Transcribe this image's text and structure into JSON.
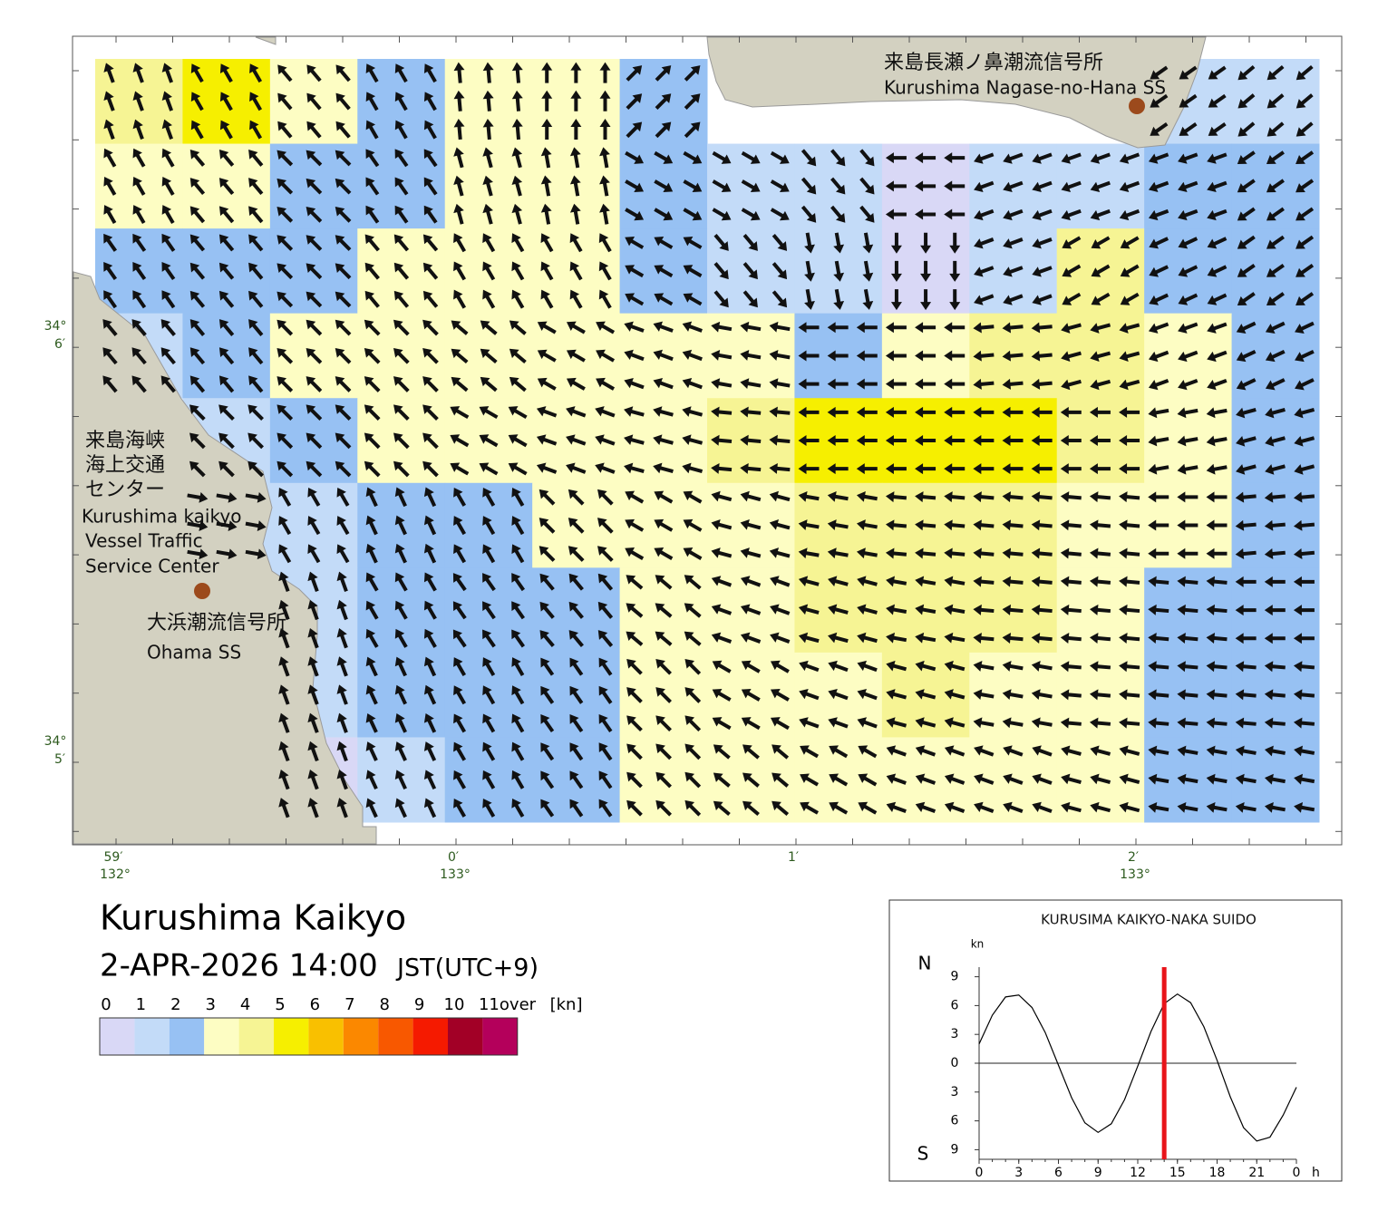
{
  "map": {
    "speeds": [
      [
        4,
        5.5,
        3.5,
        2.5,
        3.5,
        3.5,
        2,
        null,
        null,
        null,
        null,
        null,
        1,
        1.5
      ],
      [
        3.5,
        3.5,
        2.5,
        2.5,
        3.5,
        3.5,
        2,
        1.5,
        1,
        0.5,
        1,
        1.5,
        2,
        2
      ],
      [
        2.5,
        2.5,
        2.5,
        3.5,
        3.5,
        3.5,
        2.5,
        1.5,
        1,
        0.5,
        1,
        4,
        2.5,
        2.5
      ],
      [
        1,
        2.5,
        3,
        3.5,
        3.5,
        3.5,
        3.5,
        3.5,
        2.5,
        3.5,
        4.5,
        4,
        3,
        2.5
      ],
      [
        null,
        1,
        2.5,
        3.5,
        3.5,
        3.5,
        3.5,
        4,
        5,
        5.5,
        5.5,
        4,
        3.5,
        2.5
      ],
      [
        null,
        1,
        1.5,
        2.5,
        2.5,
        3,
        3.5,
        3.5,
        4,
        4.5,
        4.5,
        3.5,
        3.5,
        2.5
      ],
      [
        null,
        null,
        1.5,
        2.5,
        2.5,
        2.5,
        3,
        3.5,
        4,
        4.5,
        4,
        3.5,
        2.5,
        2.5
      ],
      [
        null,
        null,
        1,
        2.5,
        2.5,
        2.5,
        3,
        3.5,
        3.5,
        4,
        3.5,
        3.5,
        2.5,
        2.5
      ],
      [
        null,
        null,
        0.5,
        1.5,
        2.5,
        2.5,
        3,
        3.5,
        3.5,
        3.5,
        3.5,
        3,
        2.5,
        2.5
      ]
    ],
    "directions": [
      [
        340,
        330,
        320,
        330,
        355,
        0,
        45,
        null,
        null,
        null,
        null,
        null,
        235,
        230
      ],
      [
        330,
        320,
        315,
        325,
        345,
        350,
        120,
        120,
        140,
        270,
        250,
        250,
        250,
        235
      ],
      [
        325,
        320,
        315,
        320,
        330,
        330,
        300,
        140,
        170,
        180,
        250,
        240,
        245,
        235
      ],
      [
        320,
        320,
        315,
        315,
        310,
        300,
        290,
        280,
        270,
        270,
        265,
        255,
        250,
        245
      ],
      [
        null,
        315,
        315,
        315,
        300,
        290,
        285,
        275,
        270,
        270,
        270,
        270,
        260,
        255
      ],
      [
        null,
        100,
        330,
        335,
        330,
        315,
        300,
        285,
        280,
        275,
        275,
        275,
        270,
        265
      ],
      [
        null,
        null,
        340,
        330,
        325,
        320,
        310,
        290,
        285,
        280,
        275,
        275,
        275,
        270
      ],
      [
        null,
        null,
        340,
        335,
        330,
        325,
        315,
        300,
        290,
        285,
        280,
        275,
        275,
        275
      ],
      [
        null,
        null,
        340,
        335,
        330,
        325,
        315,
        310,
        300,
        290,
        290,
        285,
        280,
        280
      ]
    ],
    "lat_ticks": [
      {
        "deg": "34°",
        "min": "6′"
      },
      {
        "deg": "34°",
        "min": "5′"
      }
    ],
    "lon_ticks": [
      {
        "min": "59′",
        "deg": "132°"
      },
      {
        "min": "0′",
        "deg": "133°"
      },
      {
        "min": "1′"
      },
      {
        "min": "2′",
        "deg": "133°"
      }
    ],
    "stations": [
      {
        "name_ja": "来島長瀬ノ鼻潮流信号所",
        "name_en": "Kurushima Nagase-no-Hana SS"
      },
      {
        "name_ja": "大浜潮流信号所",
        "name_en": "Ohama SS"
      }
    ],
    "center": {
      "name_ja": [
        "来島海峡",
        "海上交通",
        "センター"
      ],
      "name_en": [
        "Kurushima kaikyo",
        "Vessel Traffic",
        "Service Center"
      ]
    }
  },
  "title": "Kurushima Kaikyo",
  "datetime": "2-APR-2026 14:00",
  "timezone": "JST(UTC+9)",
  "legend": {
    "bounds": [
      0,
      1,
      2,
      3,
      4,
      5,
      6,
      7,
      8,
      9,
      10,
      11
    ],
    "over": "over",
    "unit": "[kn]",
    "colors": [
      "#d9d8f6",
      "#c3dbf8",
      "#97c1f3",
      "#fdfdc3",
      "#f6f494",
      "#f6ef00",
      "#f9c000",
      "#fb8800",
      "#f85800",
      "#f51a00",
      "#a20026",
      "#b4005b"
    ]
  },
  "chart_data": {
    "type": "line",
    "title": "KURUSIMA KAIKYO-NAKA SUIDO",
    "y_unit": "kn",
    "north": "N",
    "south": "S",
    "x_unit": "h",
    "x": [
      0,
      1,
      2,
      3,
      4,
      5,
      6,
      7,
      8,
      9,
      10,
      11,
      12,
      13,
      14,
      15,
      16,
      17,
      18,
      19,
      20,
      21,
      22,
      23,
      24
    ],
    "series": [
      {
        "color": "#000000",
        "values": [
          2.0,
          5.0,
          6.9,
          7.1,
          5.8,
          3.2,
          -0.2,
          -3.6,
          -6.2,
          -7.2,
          -6.3,
          -3.8,
          -0.3,
          3.3,
          6.2,
          7.2,
          6.3,
          3.8,
          0.3,
          -3.5,
          -6.7,
          -8.1,
          -7.7,
          -5.4,
          -2.5
        ]
      }
    ],
    "current_time": 14,
    "marker_color": "#e8141a",
    "xlim": [
      0,
      24
    ],
    "xticks": [
      0,
      3,
      6,
      9,
      12,
      15,
      18,
      21,
      {
        "value": 24,
        "label": "0"
      }
    ],
    "ylim": [
      -10,
      10
    ],
    "yticks": [
      {
        "value": 9,
        "label": "9"
      },
      {
        "value": 6,
        "label": "6"
      },
      {
        "value": 3,
        "label": "3"
      },
      {
        "value": 0,
        "label": "0"
      },
      {
        "value": -3,
        "label": "3"
      },
      {
        "value": -6,
        "label": "6"
      },
      {
        "value": -9,
        "label": "9"
      }
    ]
  }
}
